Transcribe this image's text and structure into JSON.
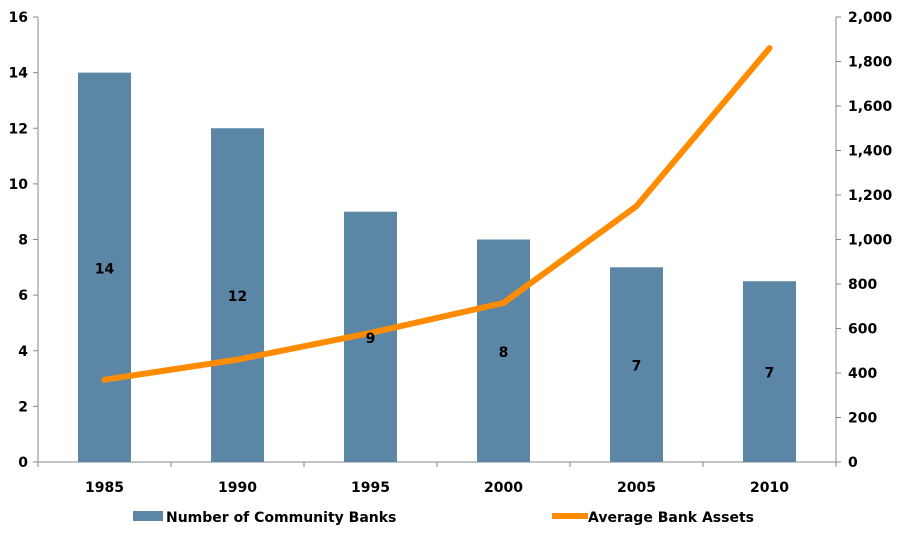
{
  "chart_data": {
    "type": "bar+line",
    "categories": [
      "1985",
      "1990",
      "1995",
      "2000",
      "2005",
      "2010"
    ],
    "series": [
      {
        "name": "Number of Community Banks",
        "type": "bar",
        "axis": "left",
        "values": [
          14,
          12,
          9,
          8,
          7,
          6.5
        ],
        "data_labels": [
          "14",
          "12",
          "9",
          "8",
          "7",
          "7"
        ],
        "color": "#5b86a5"
      },
      {
        "name": "Average Bank Assets",
        "type": "line",
        "axis": "right",
        "values": [
          370,
          460,
          580,
          715,
          1150,
          1860
        ],
        "color": "#ff8c00"
      }
    ],
    "y_left": {
      "min": 0,
      "max": 16,
      "step": 2,
      "ticks": [
        "0",
        "2",
        "4",
        "6",
        "8",
        "10",
        "12",
        "14",
        "16"
      ]
    },
    "y_right": {
      "min": 0,
      "max": 2000,
      "step": 200,
      "ticks": [
        "0",
        "200",
        "400",
        "600",
        "800",
        "1,000",
        "1,200",
        "1,400",
        "1,600",
        "1,800",
        "2,000"
      ]
    },
    "grid": false,
    "legend_position": "bottom"
  }
}
